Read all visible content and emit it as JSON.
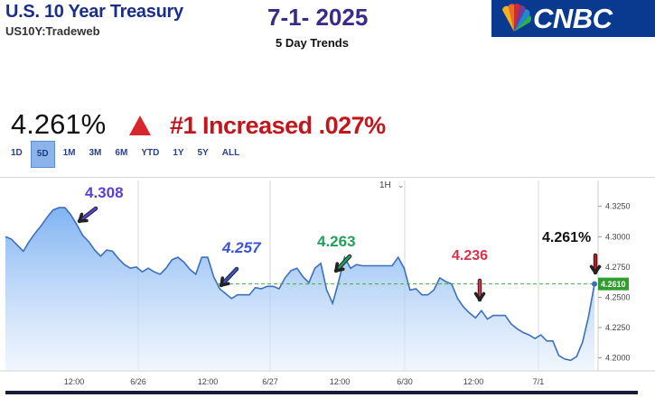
{
  "header": {
    "title": "U.S. 10 Year Treasury",
    "subtitle": "US10Y:Tradeweb",
    "date": "7-1- 2025",
    "trend_label": "5 Day Trends",
    "logo_text": "CNBC"
  },
  "quote": {
    "yield": "4.261%",
    "headline": "#1 Increased .027%"
  },
  "ranges": [
    "1D",
    "5D",
    "1M",
    "3M",
    "6M",
    "YTD",
    "1Y",
    "5Y",
    "ALL"
  ],
  "active_range": "5D",
  "interval": "1H",
  "colors": {
    "line": "#3c6fbd",
    "accent_red": "#d7262e",
    "reference": "#3fae3f"
  },
  "chart_data": {
    "type": "area",
    "title": "",
    "xlabel": "",
    "ylabel": "",
    "x_ticks": [
      "12:00",
      "6/26",
      "12:00",
      "6/27",
      "12:00",
      "6/30",
      "12:00",
      "7/1"
    ],
    "y_ticks": [
      "4.3250",
      "4.3000",
      "4.2750",
      "4.2500",
      "4.2250",
      "4.2000"
    ],
    "ylim": [
      4.19,
      4.33
    ],
    "last_value_label": "4.2610",
    "reference_level": 4.261,
    "values": [
      4.3,
      4.298,
      4.293,
      4.288,
      4.296,
      4.303,
      4.309,
      4.316,
      4.322,
      4.324,
      4.324,
      4.318,
      4.31,
      4.301,
      4.296,
      4.289,
      4.284,
      4.289,
      4.288,
      4.282,
      4.277,
      4.274,
      4.275,
      4.271,
      4.274,
      4.271,
      4.269,
      4.274,
      4.281,
      4.283,
      4.279,
      4.273,
      4.269,
      4.283,
      4.283,
      4.267,
      4.257,
      4.253,
      4.249,
      4.252,
      4.252,
      4.252,
      4.258,
      4.257,
      4.259,
      4.259,
      4.257,
      4.266,
      4.272,
      4.274,
      4.267,
      4.262,
      4.274,
      4.278,
      4.256,
      4.245,
      4.263,
      4.283,
      4.274,
      4.277,
      4.276,
      4.276,
      4.276,
      4.276,
      4.276,
      4.276,
      4.283,
      4.274,
      4.256,
      4.257,
      4.252,
      4.252,
      4.256,
      4.266,
      4.263,
      4.261,
      4.249,
      4.242,
      4.237,
      4.233,
      4.239,
      4.232,
      4.235,
      4.235,
      4.235,
      4.228,
      4.224,
      4.221,
      4.219,
      4.216,
      4.219,
      4.214,
      4.214,
      4.202,
      4.199,
      4.198,
      4.201,
      4.213,
      4.234,
      4.261
    ],
    "annotations": [
      {
        "label": "4.308",
        "color": "#5b3fd4"
      },
      {
        "label": "4.257",
        "color": "#3a52d4"
      },
      {
        "label": "4.263",
        "color": "#22a05a"
      },
      {
        "label": "4.236",
        "color": "#d8324a"
      },
      {
        "label": "4.261%",
        "color": "#111111"
      }
    ]
  }
}
